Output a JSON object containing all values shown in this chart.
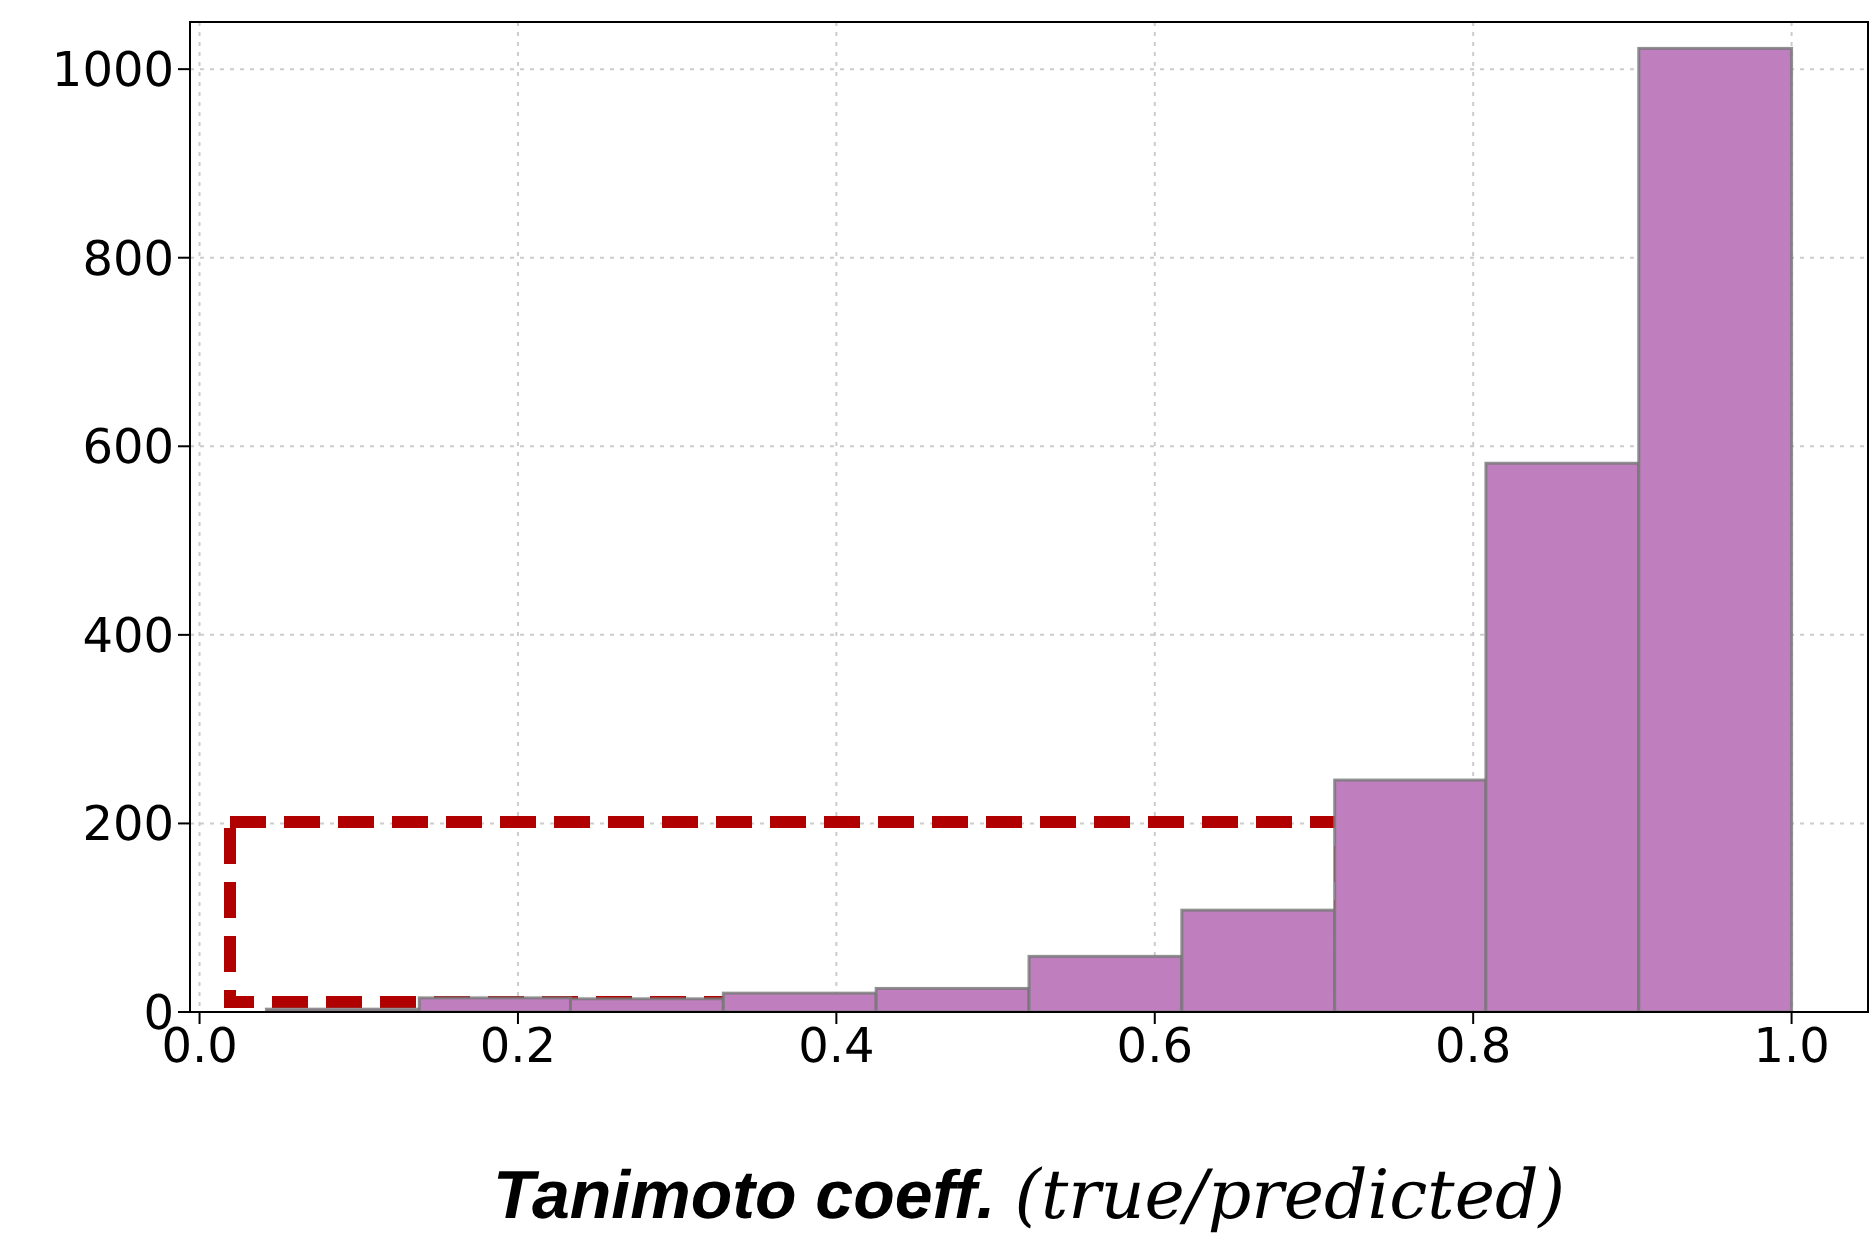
{
  "chart_data": {
    "type": "histogram",
    "xlabel": "Tanimoto coeff. (true/predicted)",
    "bins": [
      0.042,
      0.138,
      0.233,
      0.329,
      0.425,
      0.521,
      0.617,
      0.713,
      0.808,
      0.904,
      1.0
    ],
    "values": [
      3,
      15,
      14,
      20,
      25,
      59,
      108,
      246,
      582,
      1022
    ],
    "color": "#bf7fbf",
    "xlim": [
      -0.006,
      1.048
    ],
    "ylim": [
      0,
      1050
    ],
    "xticks": [
      {
        "value": 0,
        "label": "0.0"
      },
      {
        "value": 0.2,
        "label": "0.2"
      },
      {
        "value": 0.4,
        "label": "0.4"
      },
      {
        "value": 0.6,
        "label": "0.6"
      },
      {
        "value": 0.8,
        "label": "0.8"
      },
      {
        "value": 1,
        "label": "1.0"
      }
    ],
    "yticks": [
      0,
      200,
      400,
      600,
      800,
      1000
    ],
    "grid": true
  }
}
